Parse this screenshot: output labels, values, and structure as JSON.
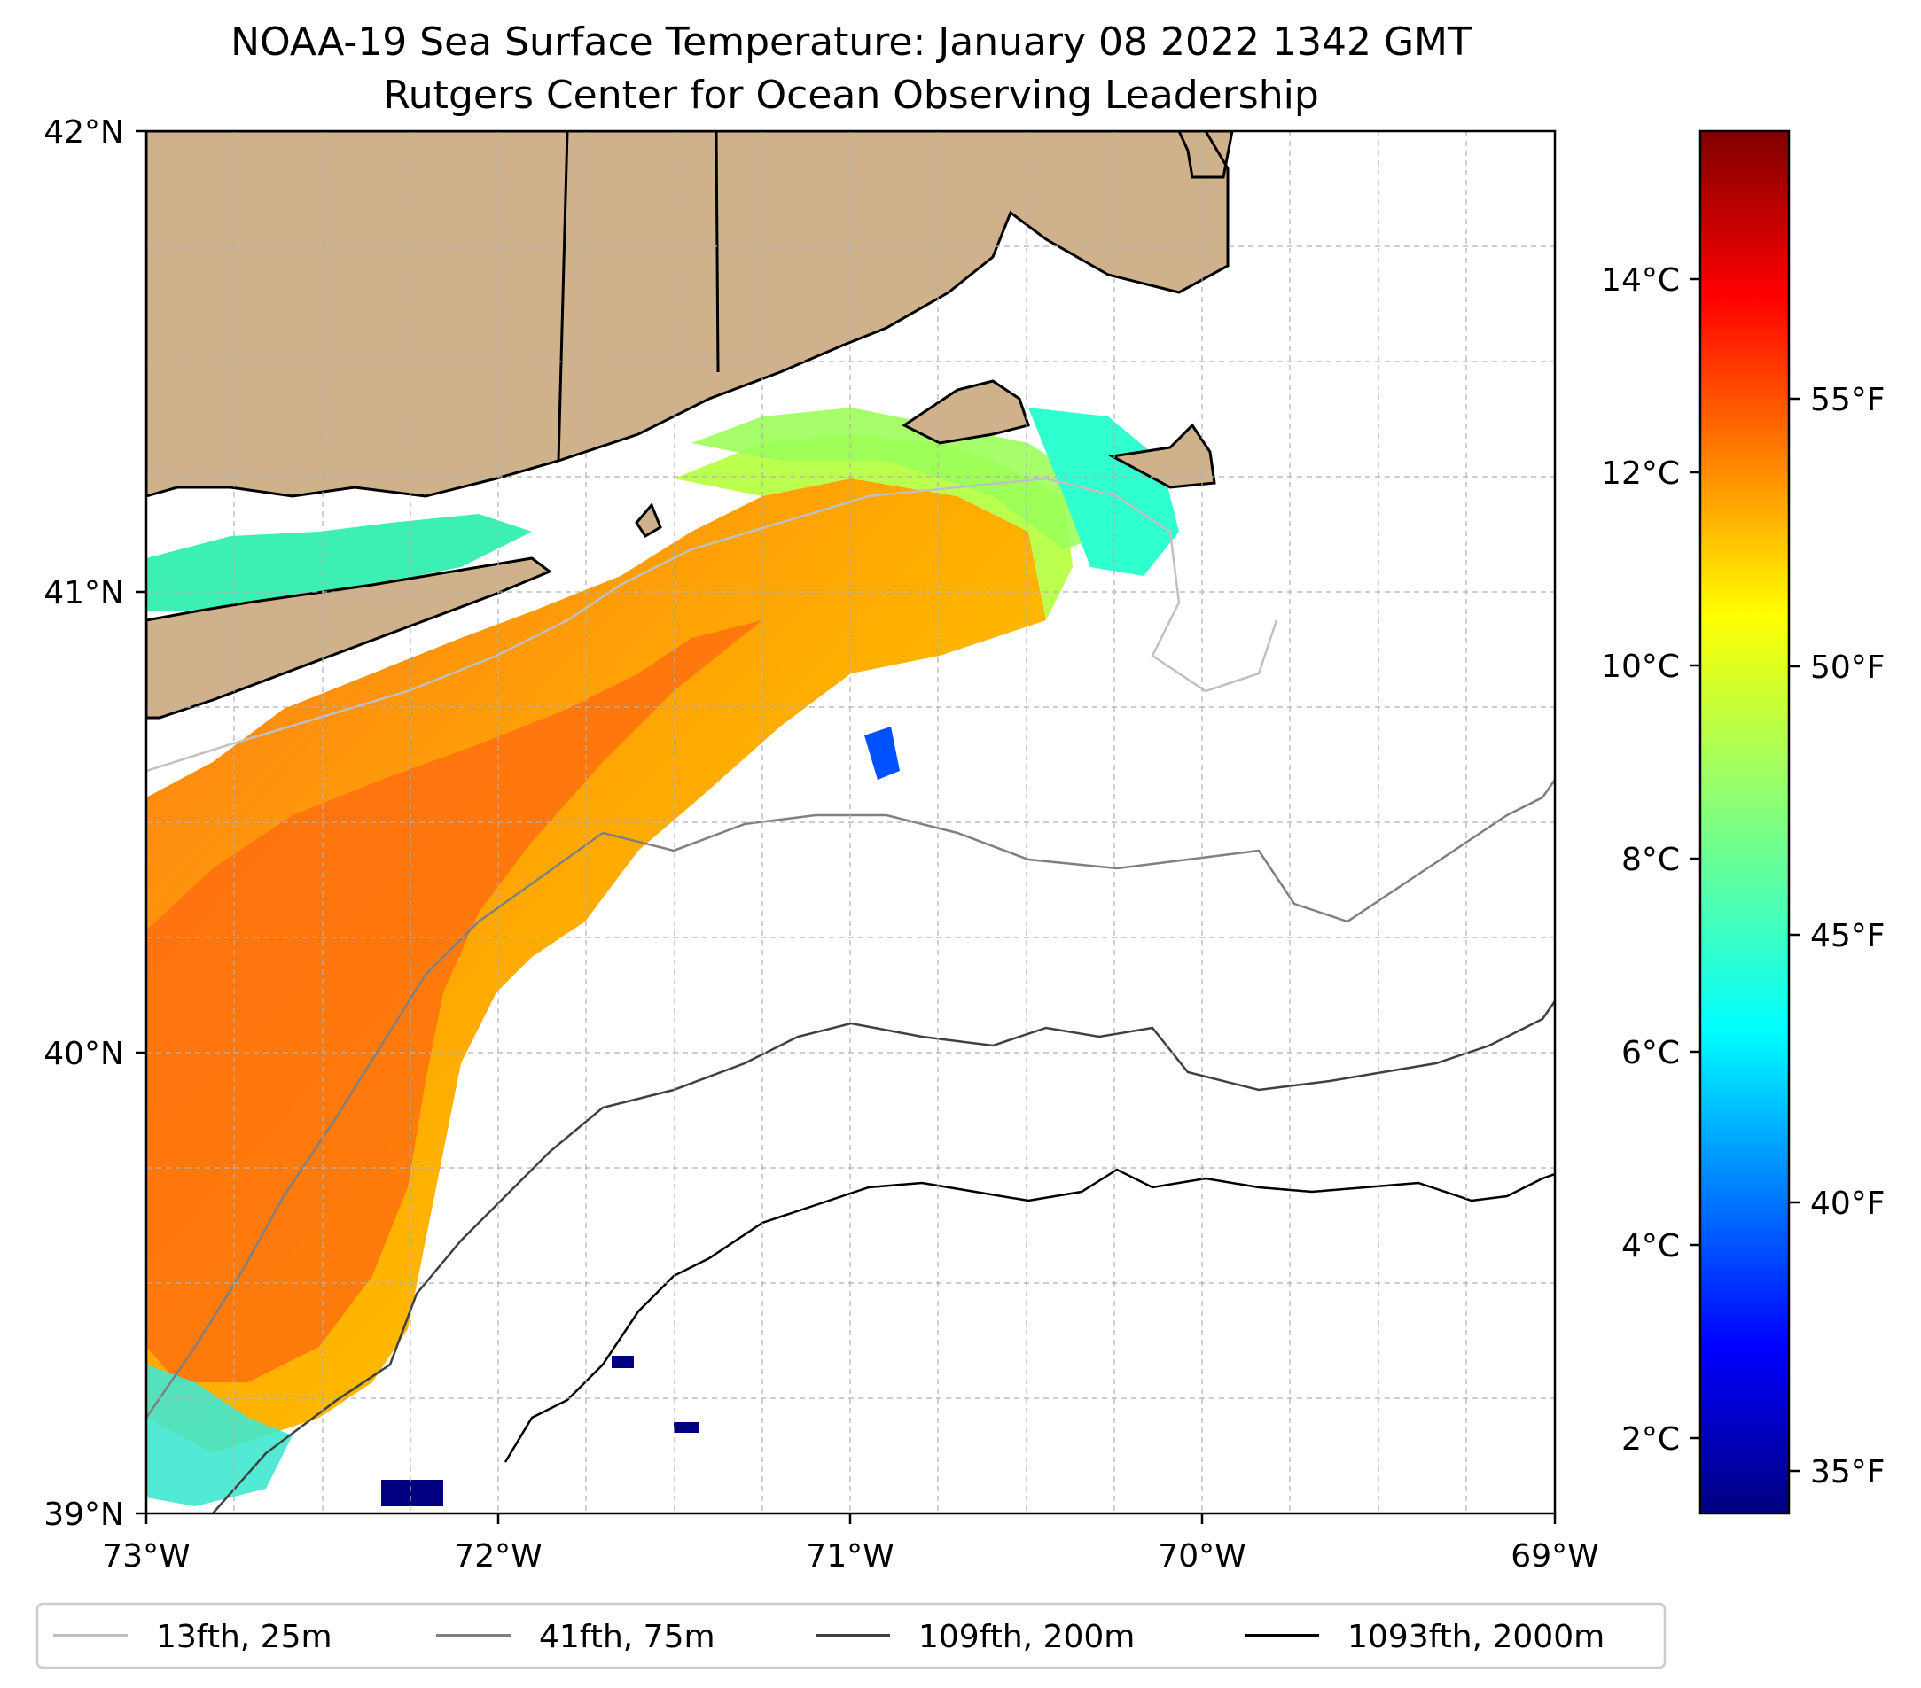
{
  "title": {
    "line1": "NOAA-19 Sea Surface Temperature: January 08 2022 1342 GMT",
    "line2": "Rutgers Center for Ocean Observing Leadership"
  },
  "axes": {
    "x_ticks": [
      "73°W",
      "72°W",
      "71°W",
      "70°W",
      "69°W"
    ],
    "y_ticks": [
      "42°N",
      "41°N",
      "40°N",
      "39°N"
    ]
  },
  "colorbar": {
    "celsius_ticks": [
      "14°C",
      "12°C",
      "10°C",
      "8°C",
      "6°C",
      "4°C",
      "2°C"
    ],
    "fahrenheit_ticks": [
      "55°F",
      "50°F",
      "45°F",
      "40°F",
      "35°F"
    ],
    "colormap": "jet"
  },
  "legend": {
    "items": [
      {
        "label": "13fth, 25m",
        "color": "#c0c0c0"
      },
      {
        "label": "41fth, 75m",
        "color": "#808080"
      },
      {
        "label": "109fth, 200m",
        "color": "#404040"
      },
      {
        "label": "1093fth, 2000m",
        "color": "#000000"
      }
    ]
  },
  "colors": {
    "land": "#cfb28c",
    "warm": "#ff6a10",
    "mid": "#ffd400",
    "cool": "#a8ff40",
    "cold": "#30ffd0",
    "coldest": "#000080"
  }
}
